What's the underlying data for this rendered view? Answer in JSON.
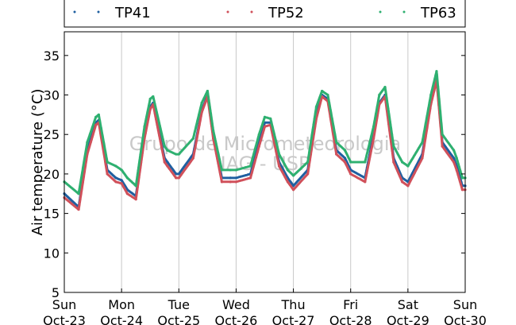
{
  "chart_data": {
    "type": "scatter",
    "ylabel": "Air temperature (°C)",
    "xlabel": "",
    "ylim": [
      5,
      38
    ],
    "yticks": [
      5,
      10,
      15,
      20,
      25,
      30,
      35
    ],
    "xlim": [
      0,
      7
    ],
    "xtick_labels": [
      [
        "Sun",
        "Oct-23"
      ],
      [
        "Mon",
        "Oct-24"
      ],
      [
        "Tue",
        "Oct-25"
      ],
      [
        "Wed",
        "Oct-26"
      ],
      [
        "Thu",
        "Oct-27"
      ],
      [
        "Fri",
        "Oct-28"
      ],
      [
        "Sat",
        "Oct-29"
      ],
      [
        "Sun",
        "Oct-30"
      ]
    ],
    "x_unit": "days since Sun Oct-23 00:00",
    "grid": "vertical-daily",
    "legend_position": "top, above plot",
    "watermark": [
      "Grupo de Micrometeorologia",
      "IAG - USP"
    ],
    "x": [
      0.0,
      0.25,
      0.4,
      0.55,
      0.6,
      0.75,
      0.9,
      1.0,
      1.1,
      1.25,
      1.4,
      1.5,
      1.55,
      1.75,
      1.8,
      1.95,
      2.0,
      2.25,
      2.4,
      2.5,
      2.6,
      2.75,
      2.9,
      3.0,
      3.25,
      3.4,
      3.5,
      3.6,
      3.75,
      3.9,
      4.0,
      4.25,
      4.4,
      4.5,
      4.6,
      4.75,
      4.9,
      5.0,
      5.25,
      5.4,
      5.5,
      5.6,
      5.75,
      5.9,
      6.0,
      6.25,
      6.4,
      6.5,
      6.6,
      6.8,
      6.85,
      6.95,
      7.0
    ],
    "series": [
      {
        "name": "TP41",
        "color": "#1f5fa0",
        "values": [
          17.5,
          15.8,
          23.0,
          26.5,
          26.8,
          20.5,
          19.5,
          19.2,
          18.0,
          17.2,
          25.0,
          28.5,
          29.0,
          22.0,
          21.5,
          20.0,
          20.0,
          22.5,
          28.0,
          30.0,
          25.0,
          19.5,
          19.5,
          19.5,
          20.0,
          24.0,
          26.5,
          26.5,
          21.5,
          19.5,
          18.5,
          20.5,
          27.5,
          30.0,
          29.5,
          23.0,
          22.0,
          20.5,
          19.5,
          25.0,
          29.0,
          30.0,
          22.0,
          19.5,
          19.0,
          22.5,
          29.0,
          32.0,
          24.0,
          22.0,
          21.0,
          18.5,
          18.5
        ]
      },
      {
        "name": "TP52",
        "color": "#d0505a",
        "values": [
          17.0,
          15.5,
          22.5,
          26.2,
          26.5,
          20.0,
          19.0,
          18.8,
          17.5,
          16.8,
          24.5,
          28.2,
          28.8,
          21.5,
          21.0,
          19.5,
          19.5,
          22.0,
          27.8,
          29.8,
          24.5,
          19.0,
          19.0,
          19.0,
          19.5,
          23.5,
          26.0,
          26.2,
          21.0,
          19.0,
          18.0,
          20.0,
          27.0,
          29.8,
          29.2,
          22.5,
          21.5,
          20.0,
          19.0,
          24.5,
          28.8,
          29.8,
          21.5,
          19.0,
          18.5,
          22.0,
          28.8,
          31.8,
          23.5,
          21.5,
          20.5,
          18.0,
          18.0
        ]
      },
      {
        "name": "TP63",
        "color": "#2eb070",
        "values": [
          19.0,
          17.5,
          24.0,
          27.2,
          27.5,
          21.5,
          21.0,
          20.5,
          19.5,
          18.5,
          26.0,
          29.5,
          29.8,
          23.5,
          23.0,
          22.5,
          22.5,
          24.5,
          29.0,
          30.5,
          25.5,
          20.5,
          20.5,
          20.5,
          21.0,
          25.0,
          27.2,
          27.0,
          22.5,
          20.5,
          19.8,
          21.5,
          28.5,
          30.5,
          30.0,
          24.0,
          23.0,
          21.5,
          21.5,
          26.0,
          30.0,
          31.0,
          23.5,
          21.5,
          21.0,
          24.0,
          30.0,
          33.0,
          25.0,
          23.0,
          22.0,
          19.5,
          19.5
        ]
      }
    ]
  }
}
